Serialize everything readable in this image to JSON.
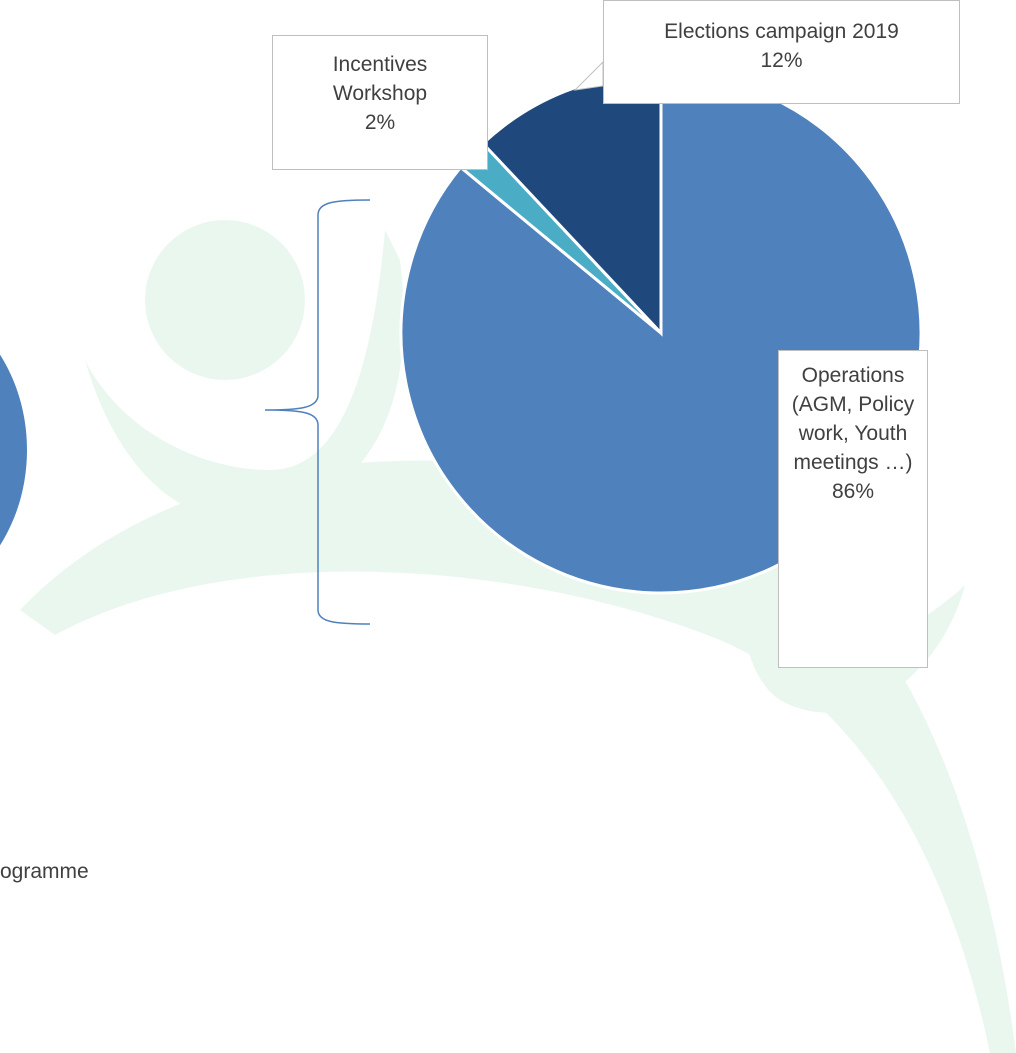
{
  "chart_data": {
    "type": "pie",
    "categories": [
      "Operations (AGM, Policy work, Youth meetings …)",
      "Incentives Workshop",
      "Elections campaign 2019"
    ],
    "values": [
      86,
      2,
      12
    ],
    "value_labels": [
      "86%",
      "2%",
      "12%"
    ],
    "colors": [
      "#4f81bd",
      "#4bacc6",
      "#1f497d"
    ]
  },
  "fragment_text": "ogramme"
}
